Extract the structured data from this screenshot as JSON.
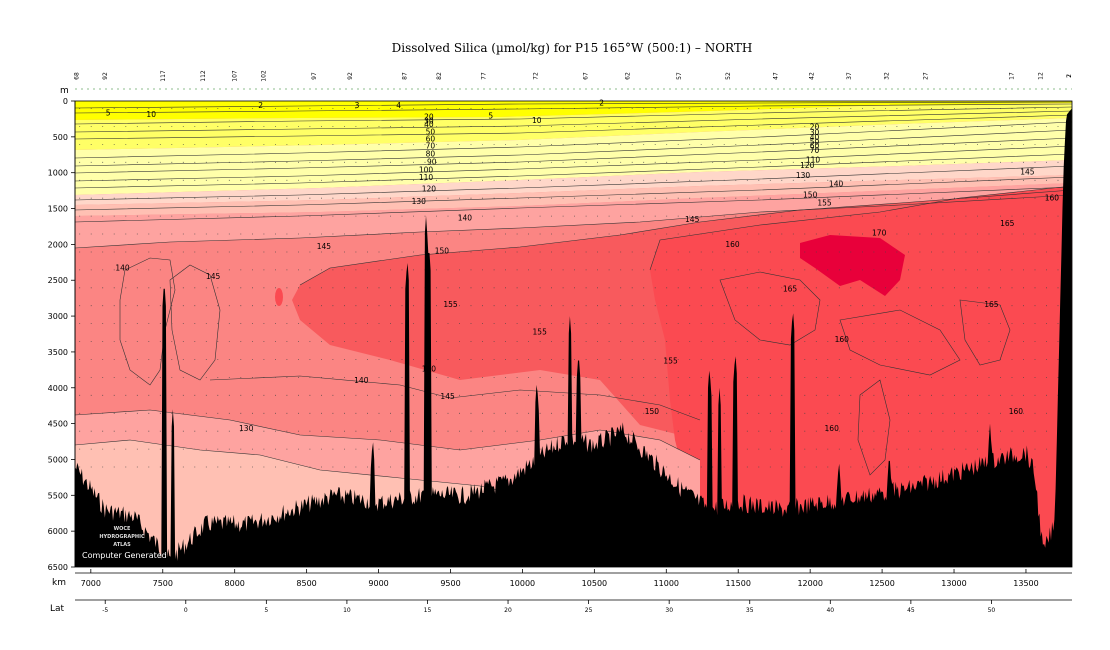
{
  "chart_data": {
    "type": "heatmap",
    "title": "Dissolved Silica (µmol/kg) for P15 165°W (500:1) – NORTH",
    "depth_unit": "m",
    "distance_unit": "km",
    "lat_label": "Lat",
    "xlim_km": [
      6890,
      13820
    ],
    "ylim_m": [
      0,
      6500
    ],
    "x_ticks": [
      7000,
      7500,
      8000,
      8500,
      9000,
      9500,
      10000,
      10500,
      11000,
      11500,
      12000,
      12500,
      13000,
      13500
    ],
    "y_ticks": [
      0,
      500,
      1000,
      1500,
      2000,
      2500,
      3000,
      3500,
      4000,
      4500,
      5000,
      5500,
      6000,
      6500
    ],
    "lat_ticks": [
      {
        "label": "-5",
        "km": 7100
      },
      {
        "label": "0",
        "km": 7660
      },
      {
        "label": "5",
        "km": 8220
      },
      {
        "label": "10",
        "km": 8780
      },
      {
        "label": "15",
        "km": 9340
      },
      {
        "label": "20",
        "km": 9900
      },
      {
        "label": "25",
        "km": 10460
      },
      {
        "label": "30",
        "km": 11020
      },
      {
        "label": "35",
        "km": 11580
      },
      {
        "label": "40",
        "km": 12140
      },
      {
        "label": "45",
        "km": 12700
      },
      {
        "label": "50",
        "km": 13260
      }
    ],
    "station_labels": [
      {
        "label": "68",
        "km": 6900
      },
      {
        "label": "92",
        "km": 7100
      },
      {
        "label": "117",
        "km": 7500
      },
      {
        "label": "112",
        "km": 7780
      },
      {
        "label": "107",
        "km": 8000
      },
      {
        "label": "102",
        "km": 8200
      },
      {
        "label": "97",
        "km": 8550
      },
      {
        "label": "92",
        "km": 8800
      },
      {
        "label": "87",
        "km": 9180
      },
      {
        "label": "82",
        "km": 9420
      },
      {
        "label": "77",
        "km": 9730
      },
      {
        "label": "72",
        "km": 10090
      },
      {
        "label": "67",
        "km": 10440
      },
      {
        "label": "62",
        "km": 10730
      },
      {
        "label": "57",
        "km": 11090
      },
      {
        "label": "52",
        "km": 11430
      },
      {
        "label": "47",
        "km": 11760
      },
      {
        "label": "42",
        "km": 12010
      },
      {
        "label": "37",
        "km": 12270
      },
      {
        "label": "32",
        "km": 12530
      },
      {
        "label": "27",
        "km": 12800
      },
      {
        "label": "17",
        "km": 13400
      },
      {
        "label": "12",
        "km": 13600
      },
      {
        "label": "7",
        "km": 13800
      },
      {
        "label": "2",
        "km": 13960
      }
    ],
    "color_bands": [
      {
        "min": 0,
        "max": 30,
        "color": "#ffff00"
      },
      {
        "min": 30,
        "max": 60,
        "color": "#ffff66"
      },
      {
        "min": 60,
        "max": 100,
        "color": "#ffffaa"
      },
      {
        "min": 100,
        "max": 120,
        "color": "#ffd7c9"
      },
      {
        "min": 120,
        "max": 130,
        "color": "#ffc0b3"
      },
      {
        "min": 130,
        "max": 140,
        "color": "#fea3a0"
      },
      {
        "min": 140,
        "max": 150,
        "color": "#fb8583"
      },
      {
        "min": 150,
        "max": 160,
        "color": "#f85a5d"
      },
      {
        "min": 160,
        "max": 170,
        "color": "#fb4a51"
      },
      {
        "min": 170,
        "max": 180,
        "color": "#e8003a"
      }
    ],
    "contour_labels": [
      {
        "text": "2",
        "km": 8180,
        "m": 60
      },
      {
        "text": "3",
        "km": 8850,
        "m": 60
      },
      {
        "text": "4",
        "km": 9140,
        "m": 60
      },
      {
        "text": "2",
        "km": 10550,
        "m": 30
      },
      {
        "text": "5",
        "km": 7120,
        "m": 170
      },
      {
        "text": "10",
        "km": 7420,
        "m": 190
      },
      {
        "text": "5",
        "km": 9780,
        "m": 210
      },
      {
        "text": "10",
        "km": 10100,
        "m": 270
      },
      {
        "text": "20",
        "km": 9350,
        "m": 220
      },
      {
        "text": "30",
        "km": 9350,
        "m": 280
      },
      {
        "text": "40",
        "km": 9350,
        "m": 330
      },
      {
        "text": "50",
        "km": 9360,
        "m": 430
      },
      {
        "text": "60",
        "km": 9360,
        "m": 530
      },
      {
        "text": "70",
        "km": 9360,
        "m": 630
      },
      {
        "text": "80",
        "km": 9360,
        "m": 740
      },
      {
        "text": "90",
        "km": 9370,
        "m": 850
      },
      {
        "text": "100",
        "km": 9330,
        "m": 960
      },
      {
        "text": "110",
        "km": 9330,
        "m": 1070
      },
      {
        "text": "120",
        "km": 9350,
        "m": 1230
      },
      {
        "text": "130",
        "km": 9280,
        "m": 1400
      },
      {
        "text": "140",
        "km": 9600,
        "m": 1630
      },
      {
        "text": "145",
        "km": 8620,
        "m": 2030
      },
      {
        "text": "150",
        "km": 9440,
        "m": 2090
      },
      {
        "text": "140",
        "km": 7220,
        "m": 2330
      },
      {
        "text": "145",
        "km": 7850,
        "m": 2450
      },
      {
        "text": "155",
        "km": 9500,
        "m": 2840
      },
      {
        "text": "155",
        "km": 10120,
        "m": 3220
      },
      {
        "text": "150",
        "km": 9350,
        "m": 3740
      },
      {
        "text": "140",
        "km": 8880,
        "m": 3900
      },
      {
        "text": "145",
        "km": 9480,
        "m": 4120
      },
      {
        "text": "130",
        "km": 8080,
        "m": 4570
      },
      {
        "text": "155",
        "km": 11030,
        "m": 3630
      },
      {
        "text": "150",
        "km": 10900,
        "m": 4330
      },
      {
        "text": "145",
        "km": 11180,
        "m": 1650
      },
      {
        "text": "160",
        "km": 11460,
        "m": 2000
      },
      {
        "text": "170",
        "km": 12480,
        "m": 1840
      },
      {
        "text": "165",
        "km": 11860,
        "m": 2620
      },
      {
        "text": "160",
        "km": 12220,
        "m": 3330
      },
      {
        "text": "160",
        "km": 12150,
        "m": 4570
      },
      {
        "text": "165",
        "km": 13260,
        "m": 2840
      },
      {
        "text": "165",
        "km": 13370,
        "m": 1710
      },
      {
        "text": "160",
        "km": 13680,
        "m": 1350
      },
      {
        "text": "145",
        "km": 13510,
        "m": 990
      },
      {
        "text": "150",
        "km": 12000,
        "m": 1310
      },
      {
        "text": "155",
        "km": 12100,
        "m": 1420
      },
      {
        "text": "140",
        "km": 12180,
        "m": 1160
      },
      {
        "text": "130",
        "km": 11950,
        "m": 1040
      },
      {
        "text": "120",
        "km": 11980,
        "m": 900
      },
      {
        "text": "110",
        "km": 12020,
        "m": 820
      },
      {
        "text": "160",
        "km": 13430,
        "m": 4330
      },
      {
        "text": "20",
        "km": 12030,
        "m": 360
      },
      {
        "text": "30",
        "km": 12030,
        "m": 440
      },
      {
        "text": "40",
        "km": 12030,
        "m": 510
      },
      {
        "text": "50",
        "km": 12030,
        "m": 570
      },
      {
        "text": "60",
        "km": 12030,
        "m": 630
      },
      {
        "text": "70",
        "km": 12030,
        "m": 690
      }
    ],
    "watermark_lines": [
      "WOCE",
      "HYDROGRAPHIC",
      "ATLAS"
    ],
    "footer_note": "Computer Generated"
  }
}
